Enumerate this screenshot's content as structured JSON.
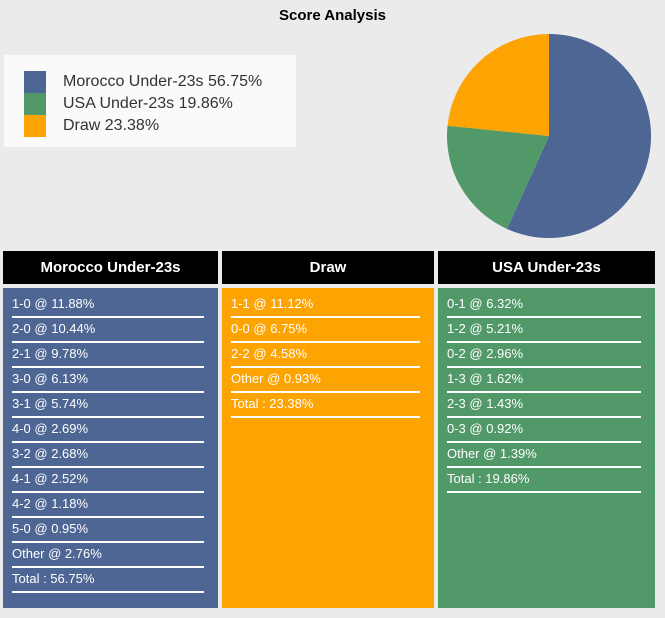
{
  "title": "Score Analysis",
  "colors": {
    "home": "#4e6694",
    "away": "#52996a",
    "draw": "#fda403",
    "header_bg": "#000000",
    "page_bg": "#ebebeb",
    "legend_bg": "#fafafa"
  },
  "chart_data": {
    "type": "pie",
    "title": "Score Analysis",
    "direction": "clockwise",
    "start_angle_deg": 0,
    "legend_position": "top-left",
    "series": [
      {
        "name": "Morocco Under-23s",
        "value": 56.75,
        "color": "#4e6694"
      },
      {
        "name": "USA Under-23s",
        "value": 19.86,
        "color": "#52996a"
      },
      {
        "name": "Draw",
        "value": 23.38,
        "color": "#fda403"
      }
    ]
  },
  "legend": {
    "items": [
      {
        "label": "Morocco Under-23s 56.75%",
        "color": "#4e6694"
      },
      {
        "label": "USA Under-23s 19.86%",
        "color": "#52996a"
      },
      {
        "label": "Draw 23.38%",
        "color": "#fda403"
      }
    ]
  },
  "score_table": {
    "columns": [
      {
        "header": "Morocco Under-23s",
        "color": "#4e6694",
        "rows": [
          "1-0 @ 11.88%",
          "2-0 @ 10.44%",
          "2-1 @ 9.78%",
          "3-0 @ 6.13%",
          "3-1 @ 5.74%",
          "4-0 @ 2.69%",
          "3-2 @ 2.68%",
          "4-1 @ 2.52%",
          "4-2 @ 1.18%",
          "5-0 @ 0.95%",
          "Other @ 2.76%",
          "Total : 56.75%"
        ]
      },
      {
        "header": "Draw",
        "color": "#fda403",
        "rows": [
          "1-1 @ 11.12%",
          "0-0 @ 6.75%",
          "2-2 @ 4.58%",
          "Other @ 0.93%",
          "Total : 23.38%"
        ]
      },
      {
        "header": "USA Under-23s",
        "color": "#52996a",
        "rows": [
          "0-1 @ 6.32%",
          "1-2 @ 5.21%",
          "0-2 @ 2.96%",
          "1-3 @ 1.62%",
          "2-3 @ 1.43%",
          "0-3 @ 0.92%",
          "Other @ 1.39%",
          "Total : 19.86%"
        ]
      }
    ]
  }
}
